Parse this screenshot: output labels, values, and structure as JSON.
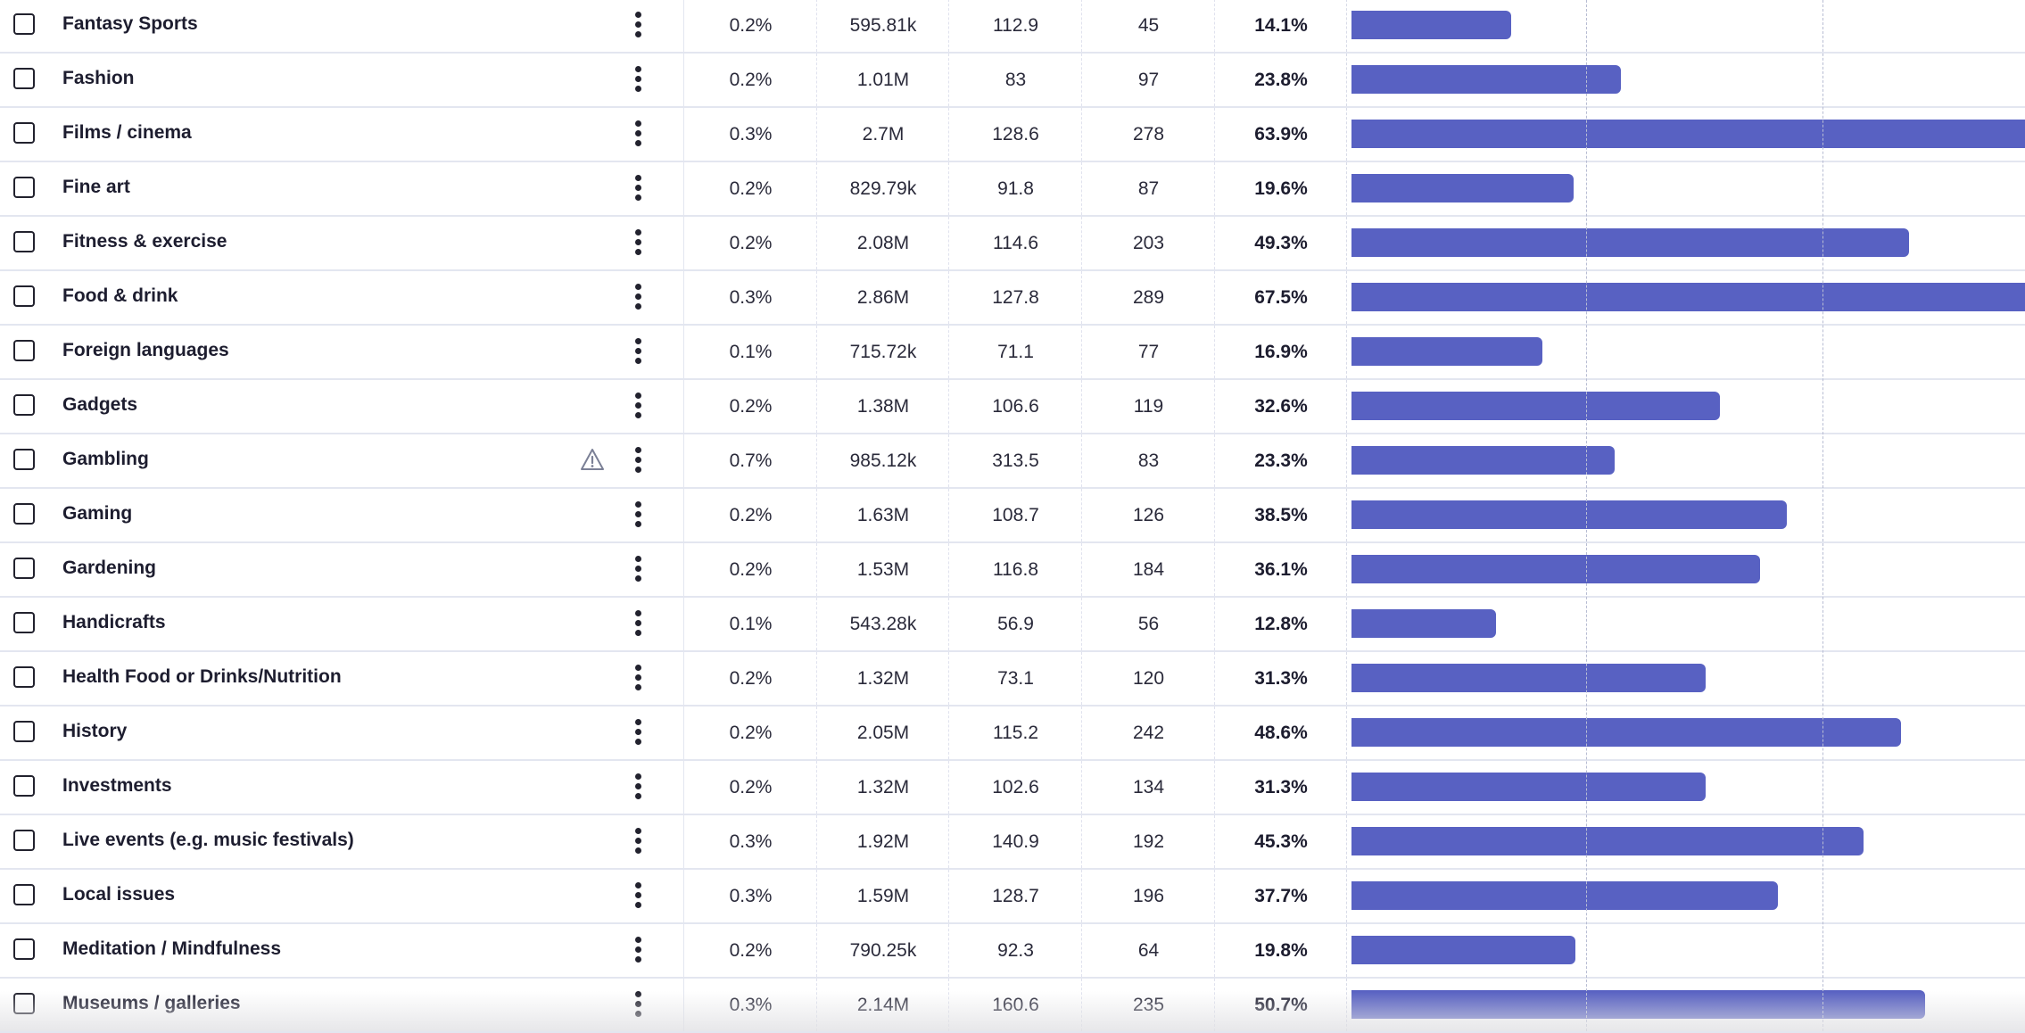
{
  "colors": {
    "bar": "#5861c2",
    "text": "#1d1d2f"
  },
  "bar_scale_max_percent": 60,
  "rows": [
    {
      "label": "Fantasy Sports",
      "c0": "0.2%",
      "c1": "595.81k",
      "c2": "112.9",
      "c3": "45",
      "c4": "14.1%",
      "bar": 14.1,
      "warning": false
    },
    {
      "label": "Fashion",
      "c0": "0.2%",
      "c1": "1.01M",
      "c2": "83",
      "c3": "97",
      "c4": "23.8%",
      "bar": 23.8,
      "warning": false
    },
    {
      "label": "Films / cinema",
      "c0": "0.3%",
      "c1": "2.7M",
      "c2": "128.6",
      "c3": "278",
      "c4": "63.9%",
      "bar": 63.9,
      "warning": false
    },
    {
      "label": "Fine art",
      "c0": "0.2%",
      "c1": "829.79k",
      "c2": "91.8",
      "c3": "87",
      "c4": "19.6%",
      "bar": 19.6,
      "warning": false
    },
    {
      "label": "Fitness & exercise",
      "c0": "0.2%",
      "c1": "2.08M",
      "c2": "114.6",
      "c3": "203",
      "c4": "49.3%",
      "bar": 49.3,
      "warning": false
    },
    {
      "label": "Food & drink",
      "c0": "0.3%",
      "c1": "2.86M",
      "c2": "127.8",
      "c3": "289",
      "c4": "67.5%",
      "bar": 67.5,
      "warning": false
    },
    {
      "label": "Foreign languages",
      "c0": "0.1%",
      "c1": "715.72k",
      "c2": "71.1",
      "c3": "77",
      "c4": "16.9%",
      "bar": 16.9,
      "warning": false
    },
    {
      "label": "Gadgets",
      "c0": "0.2%",
      "c1": "1.38M",
      "c2": "106.6",
      "c3": "119",
      "c4": "32.6%",
      "bar": 32.6,
      "warning": false
    },
    {
      "label": "Gambling",
      "c0": "0.7%",
      "c1": "985.12k",
      "c2": "313.5",
      "c3": "83",
      "c4": "23.3%",
      "bar": 23.3,
      "warning": true
    },
    {
      "label": "Gaming",
      "c0": "0.2%",
      "c1": "1.63M",
      "c2": "108.7",
      "c3": "126",
      "c4": "38.5%",
      "bar": 38.5,
      "warning": false
    },
    {
      "label": "Gardening",
      "c0": "0.2%",
      "c1": "1.53M",
      "c2": "116.8",
      "c3": "184",
      "c4": "36.1%",
      "bar": 36.1,
      "warning": false
    },
    {
      "label": "Handicrafts",
      "c0": "0.1%",
      "c1": "543.28k",
      "c2": "56.9",
      "c3": "56",
      "c4": "12.8%",
      "bar": 12.8,
      "warning": false
    },
    {
      "label": "Health Food or Drinks/Nutrition",
      "c0": "0.2%",
      "c1": "1.32M",
      "c2": "73.1",
      "c3": "120",
      "c4": "31.3%",
      "bar": 31.3,
      "warning": false
    },
    {
      "label": "History",
      "c0": "0.2%",
      "c1": "2.05M",
      "c2": "115.2",
      "c3": "242",
      "c4": "48.6%",
      "bar": 48.6,
      "warning": false
    },
    {
      "label": "Investments",
      "c0": "0.2%",
      "c1": "1.32M",
      "c2": "102.6",
      "c3": "134",
      "c4": "31.3%",
      "bar": 31.3,
      "warning": false
    },
    {
      "label": "Live events (e.g. music festivals)",
      "c0": "0.3%",
      "c1": "1.92M",
      "c2": "140.9",
      "c3": "192",
      "c4": "45.3%",
      "bar": 45.3,
      "warning": false
    },
    {
      "label": "Local issues",
      "c0": "0.3%",
      "c1": "1.59M",
      "c2": "128.7",
      "c3": "196",
      "c4": "37.7%",
      "bar": 37.7,
      "warning": false
    },
    {
      "label": "Meditation / Mindfulness",
      "c0": "0.2%",
      "c1": "790.25k",
      "c2": "92.3",
      "c3": "64",
      "c4": "19.8%",
      "bar": 19.8,
      "warning": false
    },
    {
      "label": "Museums / galleries",
      "c0": "0.3%",
      "c1": "2.14M",
      "c2": "160.6",
      "c3": "235",
      "c4": "50.7%",
      "bar": 50.7,
      "warning": false
    }
  ]
}
